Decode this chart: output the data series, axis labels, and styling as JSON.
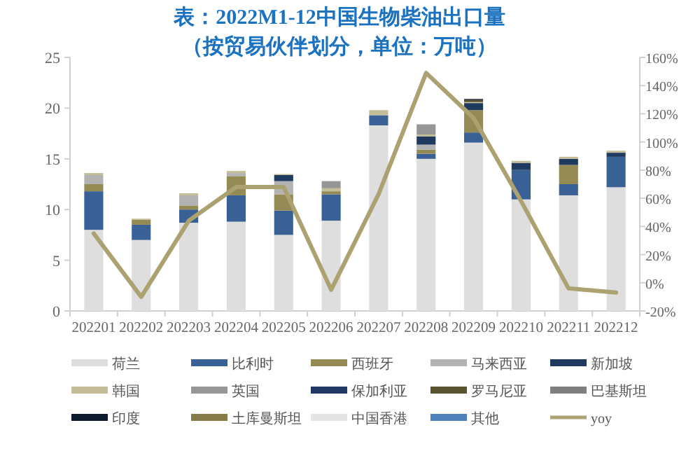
{
  "chart_data": {
    "type": "bar",
    "title": "表：2022M1-12中国生物柴油出口量",
    "subtitle": "（按贸易伙伴划分，单位：万吨）",
    "categories": [
      "202201",
      "202202",
      "202203",
      "202204",
      "202205",
      "202206",
      "202207",
      "202208",
      "202209",
      "202210",
      "202211",
      "202212"
    ],
    "stacked": true,
    "legend": "bottom",
    "ylim": [
      0,
      25
    ],
    "yticks": [
      0,
      5,
      10,
      15,
      20,
      25
    ],
    "y2lim": [
      -20,
      160
    ],
    "y2ticks": [
      {
        "value": -20,
        "label": "-20%"
      },
      {
        "value": 0,
        "label": "0%"
      },
      {
        "value": 20,
        "label": "20%"
      },
      {
        "value": 40,
        "label": "40%"
      },
      {
        "value": 60,
        "label": "60%"
      },
      {
        "value": 80,
        "label": "80%"
      },
      {
        "value": 100,
        "label": "100%"
      },
      {
        "value": 120,
        "label": "120%"
      },
      {
        "value": 140,
        "label": "140%"
      },
      {
        "value": 160,
        "label": "160%"
      }
    ],
    "series": [
      {
        "name": "荷兰",
        "color": "#dedede",
        "values": [
          8.0,
          7.0,
          8.7,
          8.8,
          7.5,
          8.9,
          18.3,
          15.0,
          16.6,
          11.0,
          11.4,
          12.2
        ]
      },
      {
        "name": "比利时",
        "color": "#3a6196",
        "values": [
          3.8,
          1.5,
          1.3,
          2.6,
          2.4,
          2.6,
          1.0,
          0.5,
          1.0,
          2.9,
          1.1,
          3.0
        ]
      },
      {
        "name": "西班牙",
        "color": "#948a54",
        "values": [
          0.7,
          0.5,
          0.4,
          1.9,
          1.6,
          0.3,
          null,
          0.4,
          2.2,
          null,
          1.9,
          null
        ]
      },
      {
        "name": "马来西亚",
        "color": "#b3b3b3",
        "values": [
          0.9,
          null,
          1.0,
          0.3,
          1.3,
          null,
          null,
          0.5,
          null,
          null,
          null,
          null
        ]
      },
      {
        "name": "新加坡",
        "color": "#1f3a5f",
        "values": [
          null,
          null,
          null,
          null,
          0.6,
          null,
          null,
          0.8,
          0.7,
          0.7,
          0.6,
          0.4
        ]
      },
      {
        "name": "韩国",
        "color": "#c4bd97",
        "values": [
          0.2,
          0.1,
          0.2,
          0.2,
          0.1,
          0.3,
          0.5,
          0.2,
          0.1,
          0.2,
          0.2,
          0.2
        ]
      },
      {
        "name": "英国",
        "color": "#969696",
        "values": [
          null,
          null,
          null,
          null,
          null,
          0.7,
          null,
          1.0,
          null,
          null,
          null,
          null
        ]
      },
      {
        "name": "保加利亚",
        "color": "#203864",
        "values": [
          null,
          null,
          null,
          null,
          null,
          null,
          null,
          null,
          null,
          null,
          null,
          null
        ]
      },
      {
        "name": "罗马尼亚",
        "color": "#5a5332",
        "values": [
          null,
          null,
          null,
          null,
          null,
          null,
          null,
          null,
          0.2,
          null,
          null,
          null
        ]
      },
      {
        "name": "巴基斯坦",
        "color": "#7f7f7f",
        "values": [
          null,
          null,
          null,
          null,
          null,
          null,
          null,
          null,
          null,
          null,
          null,
          null
        ]
      },
      {
        "name": "印度",
        "color": "#0e1a2e",
        "values": [
          null,
          null,
          null,
          null,
          null,
          null,
          null,
          null,
          0.1,
          null,
          null,
          null
        ]
      },
      {
        "name": "土库曼斯坦",
        "color": "#867c48",
        "values": [
          null,
          null,
          null,
          null,
          null,
          null,
          null,
          null,
          null,
          null,
          null,
          null
        ]
      },
      {
        "name": "中国香港",
        "color": "#e4e4e4",
        "values": [
          null,
          null,
          null,
          null,
          null,
          null,
          null,
          null,
          null,
          null,
          null,
          null
        ]
      },
      {
        "name": "其他",
        "color": "#4f81bd",
        "values": [
          null,
          null,
          null,
          null,
          null,
          null,
          null,
          null,
          null,
          null,
          null,
          null
        ]
      },
      {
        "name": "yoy",
        "type": "line",
        "axis": "y2",
        "color": "#aca170",
        "values": [
          35,
          -10,
          44,
          68,
          68,
          -5,
          63,
          149,
          117,
          58,
          -4,
          -7
        ]
      }
    ]
  }
}
